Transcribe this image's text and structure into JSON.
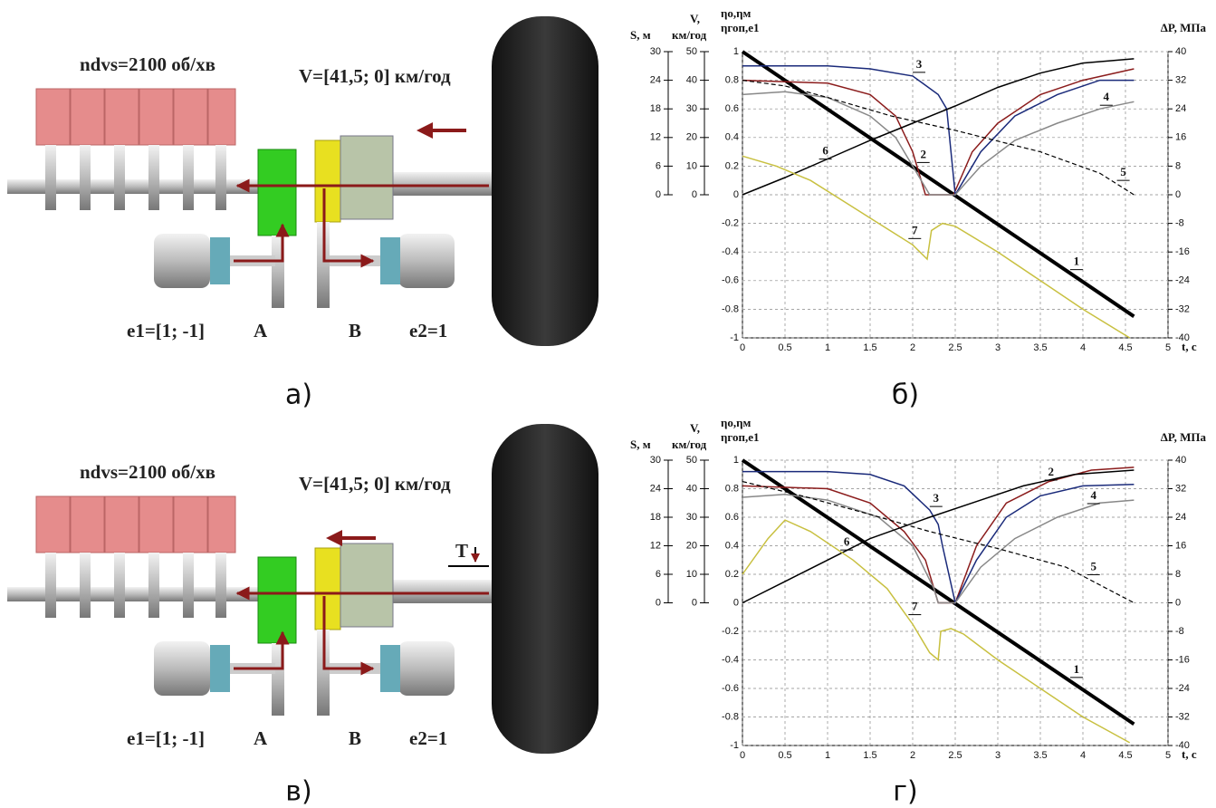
{
  "diagrams": [
    {
      "caption": "а)",
      "speed_label": "ndvs=2100 об/хв",
      "velocity_label": "V=[41,5; 0] км/год",
      "e1_label": "e1=[1; -1]",
      "a_label": "A",
      "b_label": "B",
      "e2_label": "e2=1"
    },
    {
      "caption": "в)",
      "speed_label": "ndvs=2100 об/хв",
      "velocity_label": "V=[41,5; 0] км/год",
      "e1_label": "e1=[1; -1]",
      "a_label": "A",
      "b_label": "B",
      "e2_label": "e2=1",
      "t_label": "T"
    }
  ],
  "chart_data": [
    {
      "type": "line",
      "caption": "б)",
      "axis_titles": {
        "s": "S, м",
        "v": [
          "V,",
          "км/год"
        ],
        "eta": [
          "ηо,ηм",
          "ηгоп,e1"
        ],
        "dp": "ΔP, МПа",
        "x": "t, с"
      },
      "xlim": [
        0,
        5
      ],
      "xticks": [
        0,
        0.5,
        1,
        1.5,
        2,
        2.5,
        3,
        3.5,
        4,
        4.5,
        5
      ],
      "ylim": [
        -1,
        1
      ],
      "yticks": [
        -1,
        -0.8,
        -0.6,
        -0.4,
        -0.2,
        0,
        0.2,
        0.4,
        0.6,
        0.8,
        1
      ],
      "y2lim": [
        -40,
        40
      ],
      "y2ticks": [
        -40,
        -32,
        -24,
        -16,
        -8,
        0,
        8,
        16,
        24,
        32,
        40
      ],
      "slim": [
        0,
        30
      ],
      "sticks": [
        0,
        6,
        12,
        18,
        24,
        30
      ],
      "vlim": [
        0,
        50
      ],
      "vticks": [
        0,
        10,
        20,
        30,
        40,
        50
      ],
      "grid": true,
      "series": [
        {
          "name": "1",
          "color": "#000000",
          "line_width": 4,
          "dashed": false,
          "x": [
            0,
            4.6
          ],
          "values": [
            1,
            -0.85
          ]
        },
        {
          "name": "2",
          "color": "#8b1c1c",
          "line_width": 1.5,
          "dashed": false,
          "x": [
            0,
            1,
            1.5,
            1.8,
            2,
            2.15,
            2.48,
            2.7,
            3,
            3.5,
            4,
            4.6
          ],
          "values": [
            0.8,
            0.78,
            0.7,
            0.55,
            0.3,
            0,
            0,
            0.3,
            0.5,
            0.7,
            0.8,
            0.88
          ]
        },
        {
          "name": "3",
          "color": "#1a2a7a",
          "line_width": 1.5,
          "dashed": false,
          "x": [
            0,
            1,
            1.5,
            2,
            2.3,
            2.4,
            2.45,
            2.5,
            2.8,
            3.2,
            3.7,
            4.2,
            4.6
          ],
          "values": [
            0.9,
            0.9,
            0.88,
            0.83,
            0.7,
            0.6,
            0.3,
            0,
            0.3,
            0.55,
            0.7,
            0.8,
            0.8
          ]
        },
        {
          "name": "4",
          "color": "#888888",
          "line_width": 1.5,
          "dashed": false,
          "x": [
            0,
            0.5,
            1,
            1.5,
            1.8,
            2.05,
            2.2,
            2.5,
            2.8,
            3.2,
            3.7,
            4.2,
            4.6
          ],
          "values": [
            0.7,
            0.72,
            0.68,
            0.55,
            0.4,
            0.15,
            0,
            0,
            0.2,
            0.38,
            0.5,
            0.6,
            0.65
          ]
        },
        {
          "name": "5",
          "color": "#000000",
          "line_width": 1.2,
          "dashed": true,
          "x": [
            0,
            0.5,
            1,
            1.75,
            2.5,
            3.5,
            4.2,
            4.6
          ],
          "values": [
            0.8,
            0.76,
            0.68,
            0.55,
            0.45,
            0.3,
            0.15,
            0
          ]
        },
        {
          "name": "6",
          "color": "#000000",
          "line_width": 1.5,
          "dashed": false,
          "x": [
            0,
            0.5,
            1,
            1.5,
            2,
            2.5,
            3,
            3.5,
            4,
            4.6
          ],
          "values": [
            0,
            0.12,
            0.25,
            0.38,
            0.5,
            0.62,
            0.75,
            0.85,
            0.92,
            0.95
          ]
        },
        {
          "name": "7",
          "color": "#c8c040",
          "line_width": 1.5,
          "dashed": false,
          "x": [
            0,
            0.4,
            0.8,
            1.2,
            1.6,
            2,
            2.17,
            2.22,
            2.35,
            2.5,
            3,
            3.5,
            4,
            4.55
          ],
          "values": [
            0.27,
            0.2,
            0.1,
            -0.05,
            -0.2,
            -0.35,
            -0.45,
            -0.25,
            -0.2,
            -0.22,
            -0.4,
            -0.6,
            -0.8,
            -1
          ]
        }
      ]
    },
    {
      "type": "line",
      "caption": "г)",
      "axis_titles": {
        "s": "S, м",
        "v": [
          "V,",
          "км/год"
        ],
        "eta": [
          "ηо,ηм",
          "ηгоп,e1"
        ],
        "dp": "ΔP, МПа",
        "x": "t, с"
      },
      "xlim": [
        0,
        5
      ],
      "xticks": [
        0,
        0.5,
        1,
        1.5,
        2,
        2.5,
        3,
        3.5,
        4,
        4.5,
        5
      ],
      "ylim": [
        -1,
        1
      ],
      "yticks": [
        -1,
        -0.8,
        -0.6,
        -0.4,
        -0.2,
        0,
        0.2,
        0.4,
        0.6,
        0.8,
        1
      ],
      "y2lim": [
        -40,
        40
      ],
      "y2ticks": [
        -40,
        -32,
        -24,
        -16,
        -8,
        0,
        8,
        16,
        24,
        32,
        40
      ],
      "slim": [
        0,
        30
      ],
      "sticks": [
        0,
        6,
        12,
        18,
        24,
        30
      ],
      "vlim": [
        0,
        50
      ],
      "vticks": [
        0,
        10,
        20,
        30,
        40,
        50
      ],
      "grid": true,
      "series": [
        {
          "name": "1",
          "color": "#000000",
          "line_width": 4,
          "dashed": false,
          "x": [
            0,
            4.6
          ],
          "values": [
            1,
            -0.85
          ]
        },
        {
          "name": "2",
          "color": "#8b1c1c",
          "line_width": 1.5,
          "dashed": false,
          "x": [
            0,
            1,
            1.5,
            1.9,
            2.15,
            2.3,
            2.5,
            2.75,
            3.1,
            3.6,
            4.1,
            4.6
          ],
          "values": [
            0.82,
            0.8,
            0.7,
            0.5,
            0.3,
            0,
            0,
            0.4,
            0.7,
            0.85,
            0.93,
            0.95
          ]
        },
        {
          "name": "3",
          "color": "#1a2a7a",
          "line_width": 1.5,
          "dashed": false,
          "x": [
            0,
            1,
            1.5,
            1.9,
            2.2,
            2.3,
            2.35,
            2.5,
            2.75,
            3.1,
            3.5,
            4,
            4.6
          ],
          "values": [
            0.92,
            0.92,
            0.9,
            0.82,
            0.65,
            0.55,
            0.4,
            0,
            0.3,
            0.6,
            0.75,
            0.82,
            0.83
          ]
        },
        {
          "name": "4",
          "color": "#888888",
          "line_width": 1.5,
          "dashed": false,
          "x": [
            0,
            0.5,
            1,
            1.6,
            2,
            2.25,
            2.3,
            2.5,
            2.8,
            3.2,
            3.7,
            4.2,
            4.6
          ],
          "values": [
            0.74,
            0.76,
            0.72,
            0.6,
            0.4,
            0.1,
            0,
            0,
            0.25,
            0.45,
            0.6,
            0.7,
            0.72
          ]
        },
        {
          "name": "5",
          "color": "#000000",
          "line_width": 1.2,
          "dashed": true,
          "x": [
            0,
            0.7,
            1.5,
            2.2,
            3,
            3.8,
            4.6
          ],
          "values": [
            0.85,
            0.75,
            0.62,
            0.5,
            0.38,
            0.25,
            0
          ]
        },
        {
          "name": "6",
          "color": "#000000",
          "line_width": 1.5,
          "dashed": false,
          "x": [
            0,
            0.5,
            1,
            1.5,
            2.2,
            2.8,
            3.3,
            3.9,
            4.6
          ],
          "values": [
            0,
            0.15,
            0.3,
            0.45,
            0.6,
            0.72,
            0.82,
            0.9,
            0.93
          ]
        },
        {
          "name": "7",
          "color": "#c8c040",
          "line_width": 1.5,
          "dashed": false,
          "x": [
            0,
            0.3,
            0.5,
            0.8,
            1.3,
            1.7,
            2,
            2.2,
            2.3,
            2.33,
            2.45,
            2.6,
            3,
            3.5,
            4,
            4.55
          ],
          "values": [
            0.2,
            0.45,
            0.58,
            0.5,
            0.3,
            0.1,
            -0.15,
            -0.35,
            -0.4,
            -0.2,
            -0.18,
            -0.22,
            -0.4,
            -0.6,
            -0.8,
            -0.98
          ]
        }
      ]
    }
  ]
}
